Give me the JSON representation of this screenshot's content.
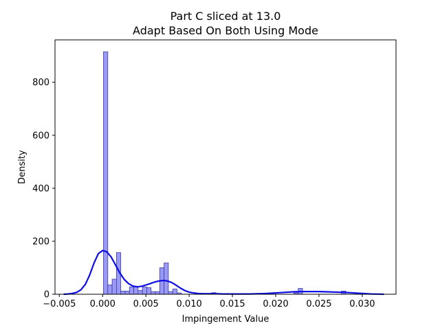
{
  "chart_data": {
    "type": "bar",
    "title": "Part C sliced at 13.0",
    "subtitle": "Adapt Based On Both   Using Mode",
    "xlabel": "Impingement Value",
    "ylabel": "Density",
    "xlim": [
      -0.0055,
      0.0339
    ],
    "ylim": [
      0,
      960
    ],
    "x_ticks": [
      -0.005,
      0.0,
      0.005,
      0.01,
      0.015,
      0.02,
      0.025,
      0.03
    ],
    "x_tick_labels": [
      "−0.005",
      "0.000",
      "0.005",
      "0.010",
      "0.015",
      "0.020",
      "0.025",
      "0.030"
    ],
    "y_ticks": [
      0,
      200,
      400,
      600,
      800
    ],
    "y_tick_labels": [
      "0",
      "200",
      "400",
      "600",
      "800"
    ],
    "grid": false,
    "histogram": {
      "bin_width": 0.0005,
      "bin_starts": [
        0.0001,
        0.0006,
        0.0011,
        0.0016,
        0.0021,
        0.0026,
        0.0031,
        0.0036,
        0.0041,
        0.0046,
        0.0051,
        0.0056,
        0.0061,
        0.0066,
        0.0071,
        0.0076,
        0.0081,
        0.0086,
        0.0126,
        0.0221,
        0.0226,
        0.0276
      ],
      "densities": [
        915,
        35,
        57,
        157,
        12,
        12,
        28,
        28,
        14,
        28,
        25,
        10,
        10,
        100,
        118,
        10,
        20,
        5,
        6,
        5,
        22,
        12
      ],
      "fill_color": "#9a9af5",
      "edge_color": "#3a3aa8"
    },
    "kde": {
      "color": "#0b0be6",
      "x": [
        -0.0045,
        -0.004,
        -0.0035,
        -0.003,
        -0.0025,
        -0.002,
        -0.0015,
        -0.001,
        -0.0005,
        0.0,
        0.0005,
        0.001,
        0.0015,
        0.002,
        0.0025,
        0.003,
        0.0035,
        0.004,
        0.0045,
        0.005,
        0.0055,
        0.006,
        0.0065,
        0.007,
        0.0075,
        0.008,
        0.0085,
        0.009,
        0.0095,
        0.01,
        0.0105,
        0.011,
        0.0115,
        0.012,
        0.0125,
        0.013,
        0.014,
        0.015,
        0.016,
        0.017,
        0.018,
        0.019,
        0.02,
        0.021,
        0.022,
        0.023,
        0.024,
        0.025,
        0.026,
        0.027,
        0.028,
        0.029,
        0.03,
        0.031,
        0.032,
        0.0325
      ],
      "y": [
        0,
        1,
        3,
        7,
        17,
        37,
        72,
        117,
        153,
        165,
        160,
        140,
        110,
        80,
        56,
        40,
        31,
        28,
        30,
        35,
        40,
        46,
        50,
        52,
        50,
        44,
        34,
        23,
        14,
        8,
        5,
        3,
        2,
        2,
        2,
        2,
        1,
        1,
        1,
        1,
        2,
        3,
        5,
        7,
        9,
        10,
        10,
        10,
        9,
        8,
        7,
        5,
        3,
        1,
        0.5,
        0
      ]
    }
  }
}
